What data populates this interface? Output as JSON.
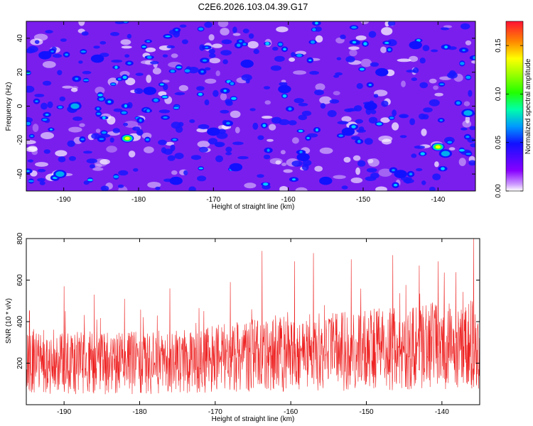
{
  "title": "C2E6.2026.103.04.39.G17",
  "chart_data": [
    {
      "type": "heatmap",
      "name": "spectrogram",
      "xlabel": "Height of straight line (km)",
      "ylabel": "Frequency (Hz)",
      "xlim": [
        -195,
        -135
      ],
      "ylim": [
        -50,
        50
      ],
      "xticks": [
        -190,
        -180,
        -170,
        -160,
        -150,
        -140
      ],
      "yticks": [
        -40,
        -20,
        0,
        20,
        40
      ],
      "colorbar": {
        "label": "Normalized spectral amplitude",
        "range": [
          0.0,
          0.175
        ],
        "ticks": [
          "0.00",
          "0.05",
          "0.10",
          "0.15"
        ]
      },
      "hotspots": [
        {
          "x": -181.5,
          "y": -19,
          "value": 0.15
        },
        {
          "x": -140.0,
          "y": -24,
          "value": 0.16
        },
        {
          "x": -190.5,
          "y": -40,
          "value": 0.08
        },
        {
          "x": -188.5,
          "y": 0,
          "value": 0.07
        },
        {
          "x": -136.0,
          "y": -4,
          "value": 0.07
        },
        {
          "x": -139.0,
          "y": -28,
          "value": 0.07
        },
        {
          "x": -178.5,
          "y": 9,
          "value": 0.06
        },
        {
          "x": -165.5,
          "y": 25,
          "value": 0.06
        },
        {
          "x": -152.0,
          "y": -15,
          "value": 0.06
        },
        {
          "x": -155.0,
          "y": -44,
          "value": 0.06
        },
        {
          "x": -175.0,
          "y": -44,
          "value": 0.06
        },
        {
          "x": -147.5,
          "y": 20,
          "value": 0.05
        },
        {
          "x": -160.5,
          "y": 10,
          "value": 0.05
        },
        {
          "x": -143.0,
          "y": 36,
          "value": 0.05
        },
        {
          "x": -185.5,
          "y": 28,
          "value": 0.05
        },
        {
          "x": -170.0,
          "y": -15,
          "value": 0.05
        },
        {
          "x": -158.0,
          "y": -30,
          "value": 0.05
        },
        {
          "x": -149.0,
          "y": 0,
          "value": 0.05
        },
        {
          "x": -192.5,
          "y": 30,
          "value": 0.05
        },
        {
          "x": -167.0,
          "y": -36,
          "value": 0.05
        },
        {
          "x": -145.0,
          "y": -40,
          "value": 0.05
        }
      ]
    },
    {
      "type": "line",
      "name": "snr",
      "xlabel": "Height of straight line (km)",
      "ylabel": "SNR (10 * v/v)",
      "xlim": [
        -195,
        -135
      ],
      "ylim": [
        0,
        800
      ],
      "xticks": [
        -190,
        -180,
        -170,
        -160,
        -150,
        -140
      ],
      "yticks": [
        200,
        400,
        600,
        800
      ],
      "color": "#ee2222",
      "trend": {
        "x": [
          -195,
          -185,
          -175,
          -165,
          -155,
          -145,
          -135
        ],
        "mean": [
          210,
          200,
          205,
          235,
          255,
          275,
          295
        ]
      },
      "peaks": [
        {
          "x": -163.8,
          "y": 740
        },
        {
          "x": -135.8,
          "y": 800
        },
        {
          "x": -157.0,
          "y": 730
        },
        {
          "x": -146.5,
          "y": 720
        },
        {
          "x": -152.0,
          "y": 700
        },
        {
          "x": -140.5,
          "y": 690
        },
        {
          "x": -159.5,
          "y": 690
        },
        {
          "x": -143.0,
          "y": 670
        },
        {
          "x": -190.0,
          "y": 570
        },
        {
          "x": -176.0,
          "y": 560
        },
        {
          "x": -168.0,
          "y": 590
        },
        {
          "x": -182.0,
          "y": 510
        },
        {
          "x": -186.0,
          "y": 530
        }
      ]
    }
  ]
}
